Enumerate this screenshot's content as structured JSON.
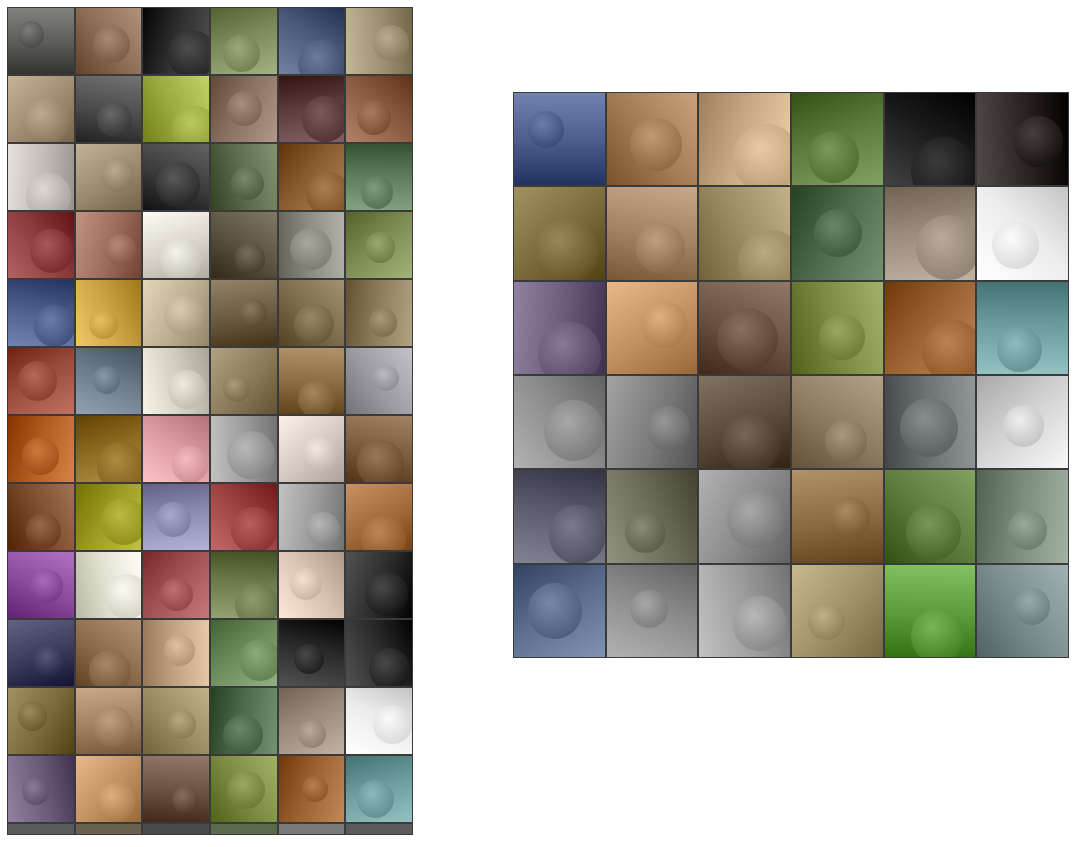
{
  "left_panel": {
    "description_tiles": [
      {
        "row": 0,
        "cols": [
          "#5a5a58",
          "#8a6a50",
          "#2c2c2c",
          "#7b8a5a",
          "#4a5a7a",
          "#9a9070"
        ]
      },
      {
        "row": 1,
        "cols": [
          "#a08a70",
          "#4a4a4a",
          "#9aaa40",
          "#8a7060",
          "#5a3a3a",
          "#8a5a40"
        ]
      },
      {
        "row": 2,
        "cols": [
          "#c0bab4",
          "#9a8a70",
          "#3a3a3a",
          "#5a6a4a",
          "#8a5a30",
          "#5a7a5a"
        ]
      },
      {
        "row": 3,
        "cols": [
          "#8a3a3a",
          "#9a6a5a",
          "#d8d4cc",
          "#5a5040",
          "#8a8a80",
          "#7a8a50"
        ]
      },
      {
        "row": 4,
        "cols": [
          "#4a5a8a",
          "#c8a040",
          "#bab090",
          "#6a5a40",
          "#7a6a4a",
          "#8a7a5a"
        ]
      },
      {
        "row": 5,
        "cols": [
          "#9a4a3a",
          "#6a7a8a",
          "#d0ccc0",
          "#8a7a5a",
          "#8a6a40",
          "#9a9aa0"
        ]
      },
      {
        "row": 6,
        "cols": [
          "#b05a20",
          "#8a6a20",
          "#d89aa0",
          "#9a9a9a",
          "#d4c8c0",
          "#7a5a3a"
        ]
      },
      {
        "row": 7,
        "cols": [
          "#7a4a2a",
          "#9a9a20",
          "#8a8ab0",
          "#9a4040",
          "#9a9a9a",
          "#a06a3a"
        ]
      },
      {
        "row": 8,
        "cols": [
          "#8a4a9a",
          "#e0e0d0",
          "#a05050",
          "#6a7a4a",
          "#d8c0b0",
          "#2a2a2a"
        ]
      },
      {
        "row": 9,
        "cols": [
          "#3a3a5a",
          "#8a6a4a",
          "#c0a080",
          "#6a8a5a",
          "#2a2a2a",
          "#2a2a2a"
        ]
      },
      {
        "row": 10,
        "cols": [
          "#7a6a3a",
          "#a08060",
          "#9a8a60",
          "#4a6a4a",
          "#9a8a7a",
          "#ececec"
        ]
      },
      {
        "row": 11,
        "cols": [
          "#6a5a7a",
          "#c09060",
          "#6a5040",
          "#7a8a40",
          "#9a6030",
          "#6a9a9a"
        ]
      }
    ]
  },
  "right_panel": {
    "description_tiles": [
      {
        "row": 0,
        "cols": [
          "#4a5a8a",
          "#a07a50",
          "#c8a880",
          "#5a7a3a",
          "#1a1a1a",
          "#2a2220"
        ]
      },
      {
        "row": 1,
        "cols": [
          "#7a6a3a",
          "#a08060",
          "#9a8a60",
          "#4a6a4a",
          "#9a8a7a",
          "#ececec"
        ]
      },
      {
        "row": 2,
        "cols": [
          "#6a5a7a",
          "#c09060",
          "#6a5040",
          "#7a8a40",
          "#9a6030",
          "#6a9a9a"
        ]
      },
      {
        "row": 3,
        "cols": [
          "#8a8a8a",
          "#7a7a7a",
          "#5a4a3a",
          "#8a7a60",
          "#6a7070",
          "#d0d0d0"
        ]
      },
      {
        "row": 4,
        "cols": [
          "#5a5a6a",
          "#6a6a5a",
          "#8a8a8a",
          "#8a6a40",
          "#5a7a3a",
          "#7a8a7a"
        ]
      },
      {
        "row": 5,
        "cols": [
          "#5a6a8a",
          "#8a8a8a",
          "#9a9a9a",
          "#a0906a",
          "#5a9a3a",
          "#7a8a8a"
        ]
      }
    ]
  }
}
